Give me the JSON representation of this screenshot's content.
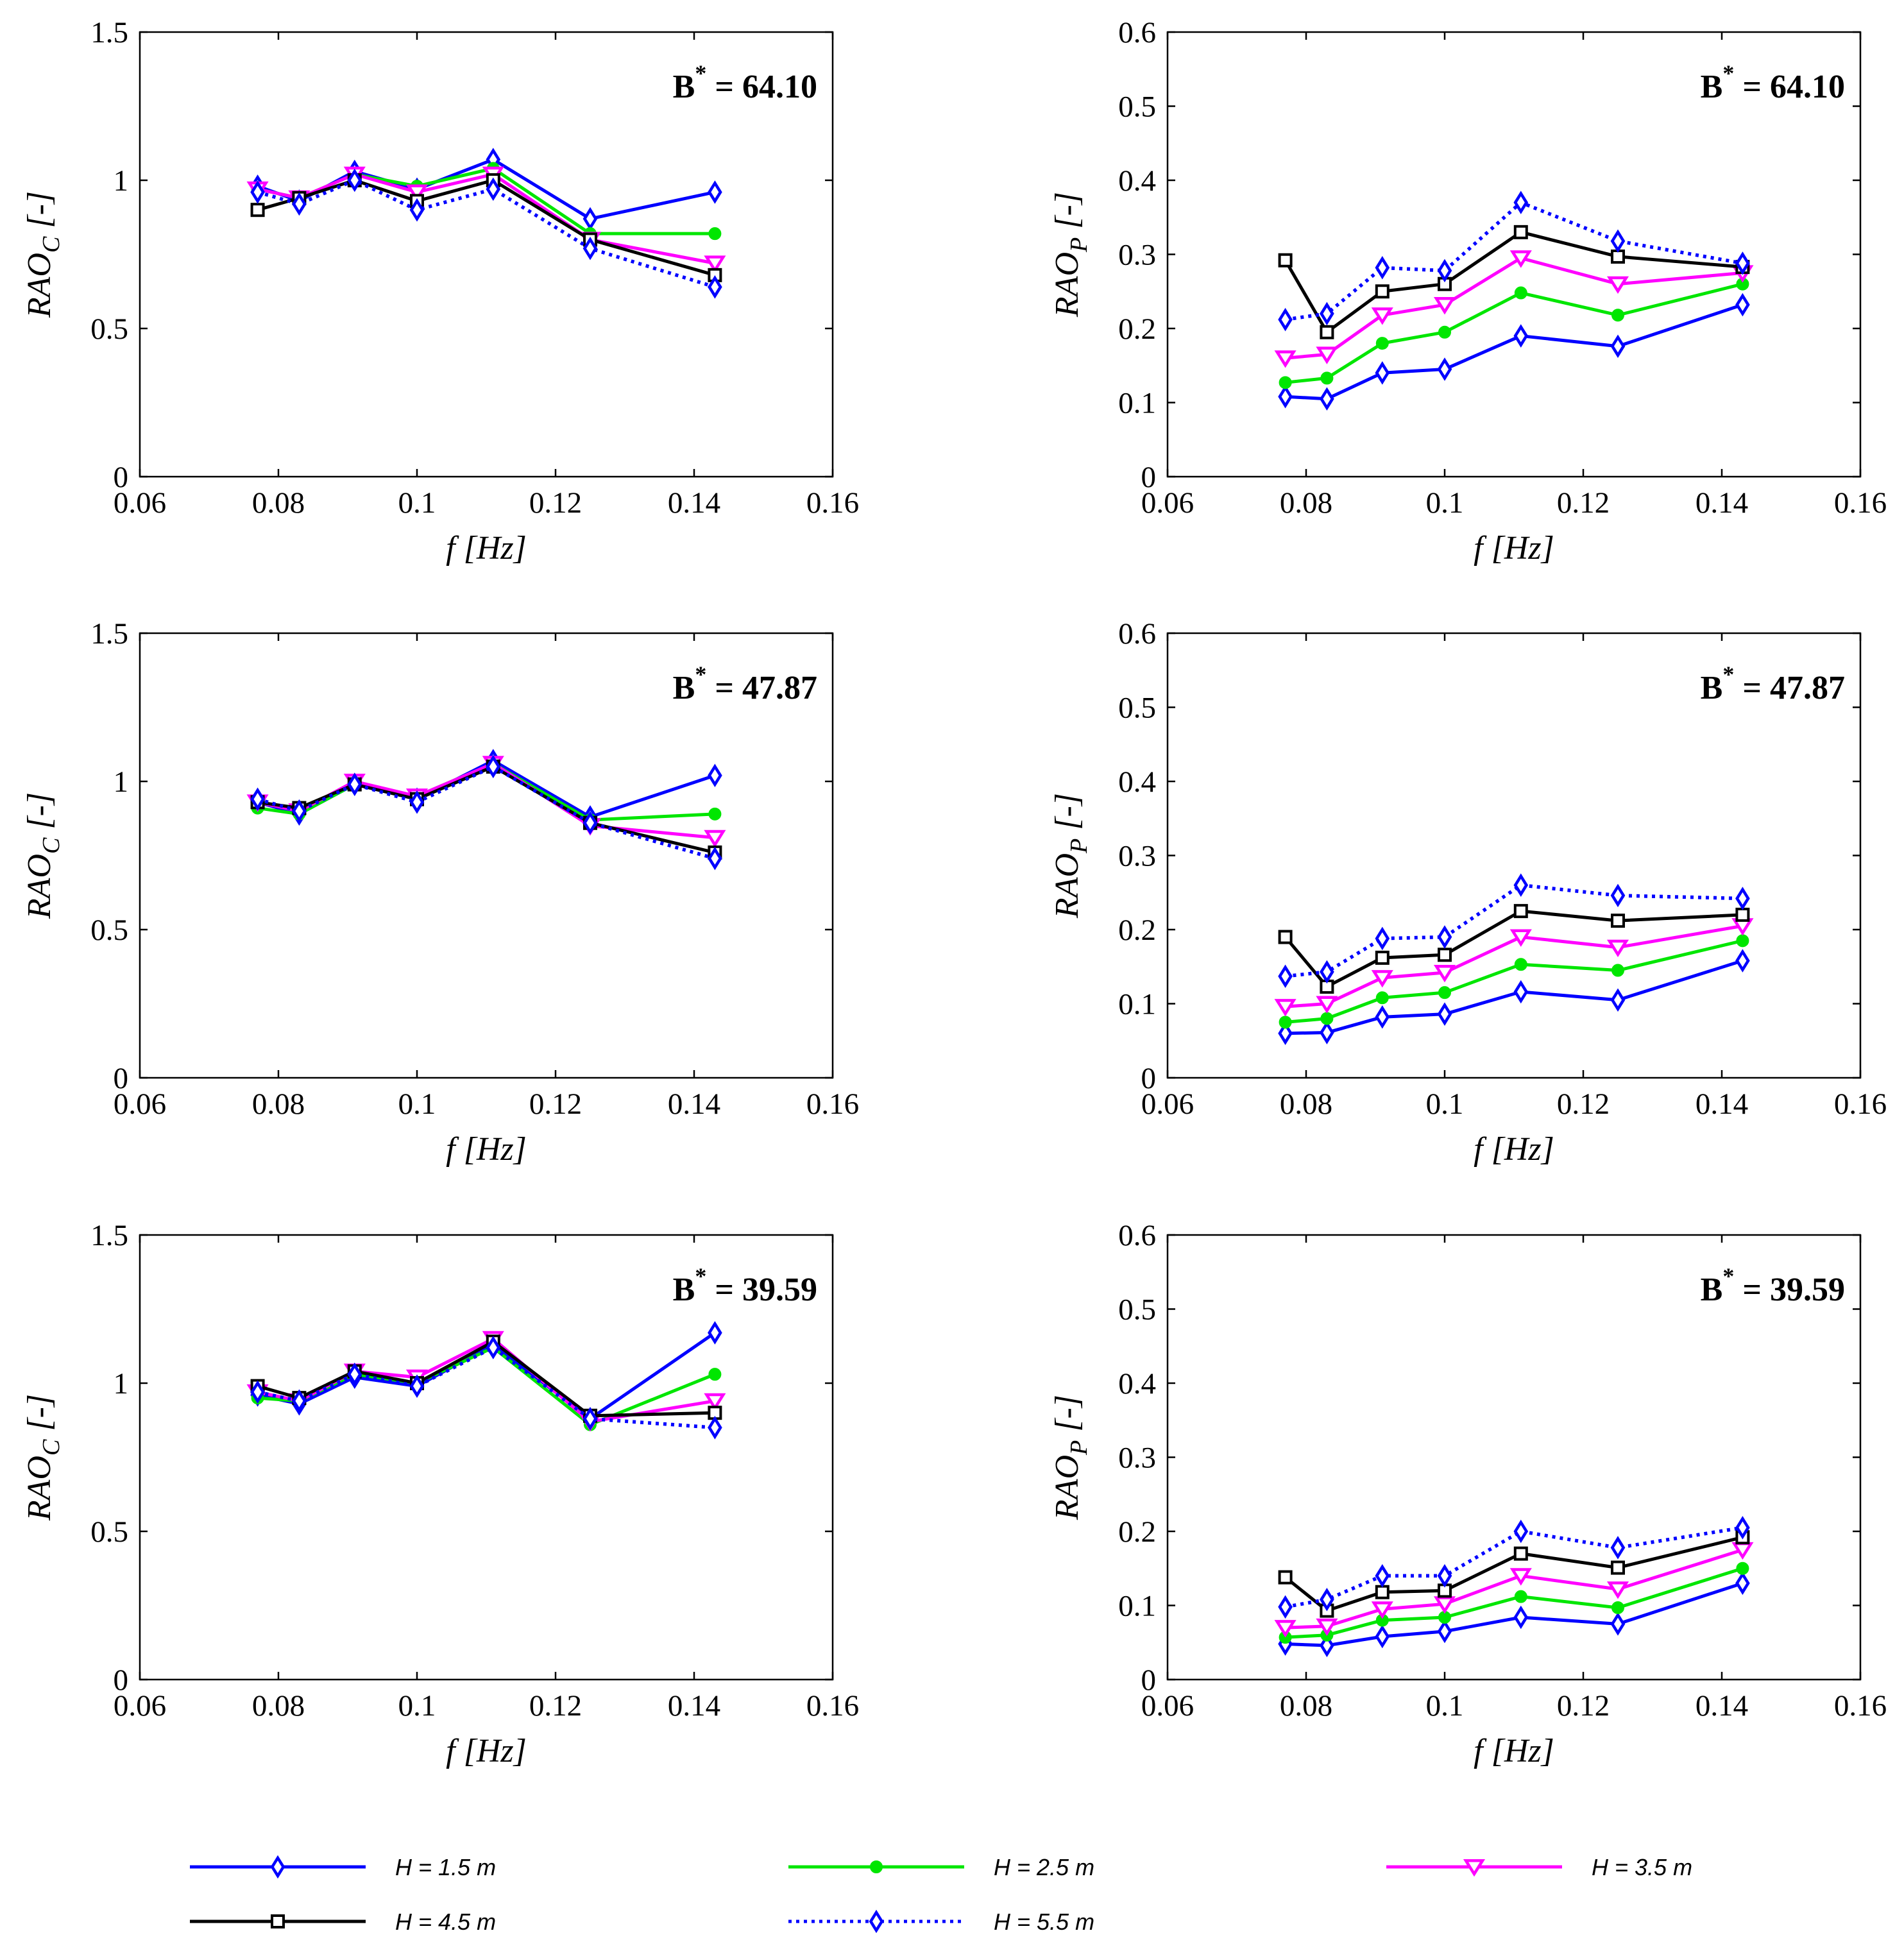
{
  "chart_data": {
    "type": "line",
    "x": [
      0.077,
      0.083,
      0.091,
      0.1,
      0.111,
      0.125,
      0.143
    ],
    "xlabel": "f [Hz]",
    "xlim": [
      0.06,
      0.16
    ],
    "xticks": [
      "0.06",
      "0.08",
      "0.1",
      "0.12",
      "0.14",
      "0.16"
    ],
    "series_styles": [
      {
        "name": "H = 1.5 m",
        "color": "#0000ff",
        "dash": "solid",
        "marker": "diamond"
      },
      {
        "name": "H = 2.5 m",
        "color": "#00e600",
        "dash": "solid",
        "marker": "dot"
      },
      {
        "name": "H = 3.5 m",
        "color": "#ff00ff",
        "dash": "solid",
        "marker": "triangle-down"
      },
      {
        "name": "H = 4.5 m",
        "color": "#000000",
        "dash": "solid",
        "marker": "square"
      },
      {
        "name": "H = 5.5 m",
        "color": "#0000ff",
        "dash": "dotted",
        "marker": "diamond"
      }
    ],
    "panels": [
      {
        "annotation": "B* = 64.10",
        "b_label": "B",
        "b_sup": "*",
        "b_value": " = 64.10",
        "ylabel_main": "RAO",
        "ylabel_sub": "C",
        "ylabel_unit": " [-]",
        "ylim": [
          0,
          1.5
        ],
        "yticks": [
          "0",
          "0.5",
          "1",
          "1.5"
        ],
        "series": [
          {
            "name": "H = 1.5 m",
            "values": [
              0.98,
              0.93,
              1.03,
              0.97,
              1.07,
              0.87,
              0.96
            ]
          },
          {
            "name": "H = 2.5 m",
            "values": [
              0.97,
              0.94,
              1.02,
              0.98,
              1.04,
              0.82,
              0.82
            ]
          },
          {
            "name": "H = 3.5 m",
            "values": [
              0.97,
              0.94,
              1.02,
              0.96,
              1.02,
              0.8,
              0.72
            ]
          },
          {
            "name": "H = 4.5 m",
            "values": [
              0.9,
              0.94,
              1.0,
              0.93,
              1.0,
              0.8,
              0.68
            ]
          },
          {
            "name": "H = 5.5 m",
            "values": [
              0.96,
              0.92,
              1.0,
              0.9,
              0.97,
              0.77,
              0.64
            ]
          }
        ]
      },
      {
        "annotation": "B* = 64.10",
        "b_label": "B",
        "b_sup": "*",
        "b_value": " = 64.10",
        "ylabel_main": "RAO",
        "ylabel_sub": "P",
        "ylabel_unit": " [-]",
        "ylim": [
          0,
          0.6
        ],
        "yticks": [
          "0",
          "0.1",
          "0.2",
          "0.3",
          "0.4",
          "0.5",
          "0.6"
        ],
        "series": [
          {
            "name": "H = 1.5 m",
            "values": [
              0.108,
              0.105,
              0.14,
              0.145,
              0.19,
              0.176,
              0.232
            ]
          },
          {
            "name": "H = 2.5 m",
            "values": [
              0.127,
              0.133,
              0.18,
              0.195,
              0.248,
              0.218,
              0.26
            ]
          },
          {
            "name": "H = 3.5 m",
            "values": [
              0.16,
              0.165,
              0.218,
              0.232,
              0.295,
              0.26,
              0.275
            ]
          },
          {
            "name": "H = 4.5 m",
            "values": [
              0.292,
              0.195,
              0.25,
              0.26,
              0.33,
              0.297,
              0.283
            ]
          },
          {
            "name": "H = 5.5 m",
            "values": [
              0.212,
              0.22,
              0.282,
              0.278,
              0.37,
              0.318,
              0.288
            ]
          }
        ]
      },
      {
        "annotation": "B* = 47.87",
        "b_label": "B",
        "b_sup": "*",
        "b_value": " = 47.87",
        "ylabel_main": "RAO",
        "ylabel_sub": "C",
        "ylabel_unit": " [-]",
        "ylim": [
          0,
          1.5
        ],
        "yticks": [
          "0",
          "0.5",
          "1",
          "1.5"
        ],
        "series": [
          {
            "name": "H = 1.5 m",
            "values": [
              0.93,
              0.89,
              0.99,
              0.94,
              1.07,
              0.88,
              1.02
            ]
          },
          {
            "name": "H = 2.5 m",
            "values": [
              0.91,
              0.89,
              0.99,
              0.95,
              1.06,
              0.87,
              0.89
            ]
          },
          {
            "name": "H = 3.5 m",
            "values": [
              0.93,
              0.9,
              1.0,
              0.95,
              1.06,
              0.85,
              0.81
            ]
          },
          {
            "name": "H = 4.5 m",
            "values": [
              0.93,
              0.91,
              0.99,
              0.94,
              1.05,
              0.86,
              0.76
            ]
          },
          {
            "name": "H = 5.5 m",
            "values": [
              0.94,
              0.9,
              0.99,
              0.93,
              1.05,
              0.86,
              0.74
            ]
          }
        ]
      },
      {
        "annotation": "B* = 47.87",
        "b_label": "B",
        "b_sup": "*",
        "b_value": " = 47.87",
        "ylabel_main": "RAO",
        "ylabel_sub": "P",
        "ylabel_unit": " [-]",
        "ylim": [
          0,
          0.6
        ],
        "yticks": [
          "0",
          "0.1",
          "0.2",
          "0.3",
          "0.4",
          "0.5",
          "0.6"
        ],
        "series": [
          {
            "name": "H = 1.5 m",
            "values": [
              0.06,
              0.061,
              0.082,
              0.086,
              0.116,
              0.105,
              0.158
            ]
          },
          {
            "name": "H = 2.5 m",
            "values": [
              0.075,
              0.08,
              0.108,
              0.115,
              0.153,
              0.145,
              0.185
            ]
          },
          {
            "name": "H = 3.5 m",
            "values": [
              0.096,
              0.1,
              0.135,
              0.142,
              0.19,
              0.176,
              0.205
            ]
          },
          {
            "name": "H = 4.5 m",
            "values": [
              0.19,
              0.123,
              0.162,
              0.166,
              0.225,
              0.212,
              0.22
            ]
          },
          {
            "name": "H = 5.5 m",
            "values": [
              0.137,
              0.143,
              0.188,
              0.19,
              0.26,
              0.246,
              0.242
            ]
          }
        ]
      },
      {
        "annotation": "B* = 39.59",
        "b_label": "B",
        "b_sup": "*",
        "b_value": " = 39.59",
        "ylabel_main": "RAO",
        "ylabel_sub": "C",
        "ylabel_unit": " [-]",
        "ylim": [
          0,
          1.5
        ],
        "yticks": [
          "0",
          "0.5",
          "1",
          "1.5"
        ],
        "series": [
          {
            "name": "H = 1.5 m",
            "values": [
              0.96,
              0.93,
              1.02,
              0.99,
              1.13,
              0.88,
              1.17
            ]
          },
          {
            "name": "H = 2.5 m",
            "values": [
              0.95,
              0.94,
              1.03,
              1.0,
              1.12,
              0.86,
              1.03
            ]
          },
          {
            "name": "H = 3.5 m",
            "values": [
              0.97,
              0.94,
              1.04,
              1.02,
              1.15,
              0.87,
              0.94
            ]
          },
          {
            "name": "H = 4.5 m",
            "values": [
              0.99,
              0.95,
              1.04,
              1.0,
              1.14,
              0.89,
              0.9
            ]
          },
          {
            "name": "H = 5.5 m",
            "values": [
              0.97,
              0.94,
              1.03,
              0.99,
              1.12,
              0.88,
              0.85
            ]
          }
        ]
      },
      {
        "annotation": "B* = 39.59",
        "b_label": "B",
        "b_sup": "*",
        "b_value": " = 39.59",
        "ylabel_main": "RAO",
        "ylabel_sub": "P",
        "ylabel_unit": " [-]",
        "ylim": [
          0,
          0.6
        ],
        "yticks": [
          "0",
          "0.1",
          "0.2",
          "0.3",
          "0.4",
          "0.5",
          "0.6"
        ],
        "series": [
          {
            "name": "H = 1.5 m",
            "values": [
              0.048,
              0.046,
              0.058,
              0.065,
              0.084,
              0.075,
              0.13
            ]
          },
          {
            "name": "H = 2.5 m",
            "values": [
              0.057,
              0.06,
              0.08,
              0.084,
              0.112,
              0.097,
              0.15
            ]
          },
          {
            "name": "H = 3.5 m",
            "values": [
              0.07,
              0.072,
              0.095,
              0.102,
              0.14,
              0.122,
              0.175
            ]
          },
          {
            "name": "H = 4.5 m",
            "values": [
              0.138,
              0.093,
              0.118,
              0.12,
              0.17,
              0.151,
              0.192
            ]
          },
          {
            "name": "H = 5.5 m",
            "values": [
              0.098,
              0.108,
              0.14,
              0.14,
              0.2,
              0.178,
              0.205
            ]
          }
        ]
      }
    ],
    "legend": [
      {
        "label": "H = 1.5 m"
      },
      {
        "label": "H = 2.5 m"
      },
      {
        "label": "H = 3.5 m"
      },
      {
        "label": "H = 4.5 m"
      },
      {
        "label": "H = 5.5 m"
      }
    ]
  }
}
